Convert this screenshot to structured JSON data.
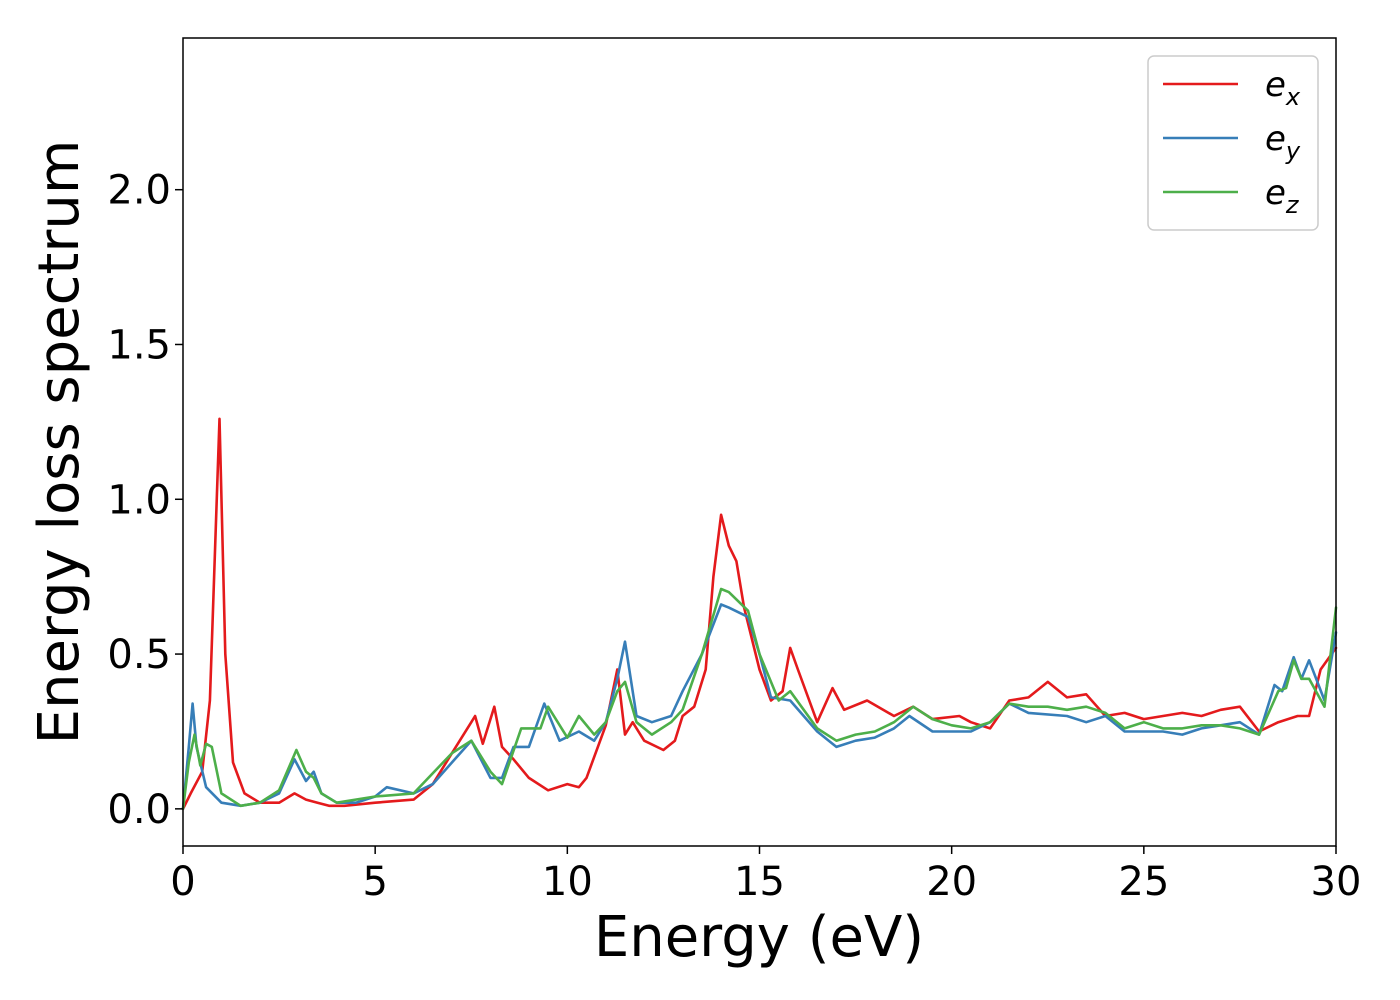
{
  "chart_data": {
    "type": "line",
    "title": "",
    "xlabel": "Energy (eV)",
    "ylabel": "Energy loss spectrum",
    "xlim": [
      0,
      30
    ],
    "ylim": [
      -0.12,
      2.49
    ],
    "xticks": [
      0,
      5,
      10,
      15,
      20,
      25,
      30
    ],
    "xtick_labels": [
      "0",
      "5",
      "10",
      "15",
      "20",
      "25",
      "30"
    ],
    "yticks": [
      0.0,
      0.5,
      1.0,
      1.5,
      2.0
    ],
    "ytick_labels": [
      "0.0",
      "0.5",
      "1.0",
      "1.5",
      "2.0"
    ],
    "grid": false,
    "legend_position": "top-right",
    "colors": {
      "e_x": "#e41a1c",
      "e_y": "#377eb8",
      "e_z": "#4daf4a"
    },
    "series": [
      {
        "name": "e_x",
        "name_base": "e",
        "name_sub": "x",
        "x": [
          0,
          0.2,
          0.5,
          0.7,
          0.85,
          0.95,
          1.1,
          1.3,
          1.6,
          2.0,
          2.5,
          2.9,
          3.2,
          3.5,
          3.8,
          4.2,
          5,
          6,
          6.5,
          7,
          7.5,
          7.6,
          7.8,
          8.1,
          8.3,
          8.6,
          9,
          9.5,
          10,
          10.3,
          10.5,
          11,
          11.3,
          11.5,
          11.7,
          12,
          12.5,
          12.8,
          13,
          13.3,
          13.6,
          13.8,
          14.0,
          14.2,
          14.4,
          14.6,
          15,
          15.3,
          15.6,
          15.8,
          16,
          16.5,
          16.9,
          17.2,
          17.8,
          18.5,
          19.0,
          19.5,
          20.2,
          20.5,
          21,
          21.5,
          22,
          22.5,
          23,
          23.5,
          24,
          24.5,
          25,
          25.5,
          26,
          26.5,
          27,
          27.5,
          28,
          28.5,
          29,
          29.3,
          29.6,
          30
        ],
        "y": [
          0.0,
          0.05,
          0.12,
          0.35,
          0.9,
          1.26,
          0.5,
          0.15,
          0.05,
          0.02,
          0.02,
          0.05,
          0.03,
          0.02,
          0.01,
          0.01,
          0.02,
          0.03,
          0.08,
          0.18,
          0.28,
          0.3,
          0.21,
          0.33,
          0.2,
          0.16,
          0.1,
          0.06,
          0.08,
          0.07,
          0.1,
          0.27,
          0.45,
          0.24,
          0.28,
          0.22,
          0.19,
          0.22,
          0.3,
          0.33,
          0.45,
          0.75,
          0.95,
          0.85,
          0.8,
          0.65,
          0.45,
          0.35,
          0.38,
          0.52,
          0.45,
          0.28,
          0.39,
          0.32,
          0.35,
          0.3,
          0.33,
          0.29,
          0.3,
          0.28,
          0.26,
          0.35,
          0.36,
          0.41,
          0.36,
          0.37,
          0.3,
          0.31,
          0.29,
          0.3,
          0.31,
          0.3,
          0.32,
          0.33,
          0.25,
          0.28,
          0.3,
          0.3,
          0.45,
          0.52
        ]
      },
      {
        "name": "e_y",
        "name_base": "e",
        "name_sub": "y",
        "x": [
          0,
          0.15,
          0.25,
          0.35,
          0.6,
          1.0,
          1.5,
          2.0,
          2.5,
          2.9,
          3.2,
          3.4,
          3.6,
          4.0,
          4.5,
          5,
          5.3,
          6,
          6.5,
          7,
          7.5,
          8,
          8.3,
          8.6,
          9,
          9.4,
          9.8,
          10.3,
          10.7,
          11,
          11.3,
          11.5,
          11.8,
          12.2,
          12.7,
          13,
          13.5,
          14.0,
          14.2,
          14.7,
          15,
          15.3,
          15.8,
          16.5,
          17,
          17.5,
          18,
          18.5,
          18.9,
          19.5,
          20,
          20.5,
          21,
          21.5,
          22,
          23,
          23.5,
          24,
          24.5,
          25,
          25.5,
          26,
          26.5,
          27,
          27.5,
          28,
          28.4,
          28.6,
          28.9,
          29.1,
          29.3,
          29.7,
          30
        ],
        "y": [
          0.0,
          0.2,
          0.34,
          0.2,
          0.07,
          0.02,
          0.01,
          0.02,
          0.05,
          0.16,
          0.09,
          0.12,
          0.05,
          0.02,
          0.02,
          0.04,
          0.07,
          0.05,
          0.08,
          0.15,
          0.22,
          0.1,
          0.1,
          0.2,
          0.2,
          0.34,
          0.22,
          0.25,
          0.22,
          0.28,
          0.42,
          0.54,
          0.3,
          0.28,
          0.3,
          0.38,
          0.5,
          0.66,
          0.65,
          0.62,
          0.5,
          0.36,
          0.35,
          0.25,
          0.2,
          0.22,
          0.23,
          0.26,
          0.3,
          0.25,
          0.25,
          0.25,
          0.28,
          0.34,
          0.31,
          0.3,
          0.28,
          0.3,
          0.25,
          0.25,
          0.25,
          0.24,
          0.26,
          0.27,
          0.28,
          0.24,
          0.4,
          0.38,
          0.49,
          0.42,
          0.48,
          0.35,
          0.57
        ]
      },
      {
        "name": "e_z",
        "name_base": "e",
        "name_sub": "z",
        "x": [
          0,
          0.15,
          0.3,
          0.45,
          0.6,
          0.75,
          1.0,
          1.5,
          2.0,
          2.5,
          2.95,
          3.2,
          3.4,
          3.6,
          4.0,
          5,
          6,
          7,
          7.5,
          8,
          8.3,
          8.8,
          9.3,
          9.5,
          10,
          10.3,
          10.7,
          11,
          11.3,
          11.5,
          11.8,
          12.2,
          12.7,
          13,
          13.5,
          14.0,
          14.2,
          14.7,
          15,
          15.5,
          15.8,
          16.5,
          17,
          17.5,
          18,
          18.5,
          19,
          19.5,
          20,
          20.5,
          21,
          21.5,
          22,
          22.5,
          23,
          23.5,
          24,
          24.5,
          25,
          25.5,
          26,
          26.5,
          27,
          27.5,
          28,
          28.5,
          28.7,
          28.9,
          29.1,
          29.3,
          29.7,
          30
        ],
        "y": [
          0.0,
          0.15,
          0.24,
          0.14,
          0.21,
          0.2,
          0.05,
          0.01,
          0.02,
          0.06,
          0.19,
          0.12,
          0.1,
          0.05,
          0.02,
          0.04,
          0.05,
          0.18,
          0.22,
          0.12,
          0.08,
          0.26,
          0.26,
          0.33,
          0.23,
          0.3,
          0.24,
          0.28,
          0.38,
          0.41,
          0.28,
          0.24,
          0.28,
          0.32,
          0.5,
          0.71,
          0.7,
          0.64,
          0.5,
          0.35,
          0.38,
          0.26,
          0.22,
          0.24,
          0.25,
          0.28,
          0.33,
          0.29,
          0.27,
          0.26,
          0.28,
          0.34,
          0.33,
          0.33,
          0.32,
          0.33,
          0.31,
          0.26,
          0.28,
          0.26,
          0.26,
          0.27,
          0.27,
          0.26,
          0.24,
          0.38,
          0.39,
          0.48,
          0.42,
          0.42,
          0.33,
          0.65
        ]
      }
    ]
  }
}
